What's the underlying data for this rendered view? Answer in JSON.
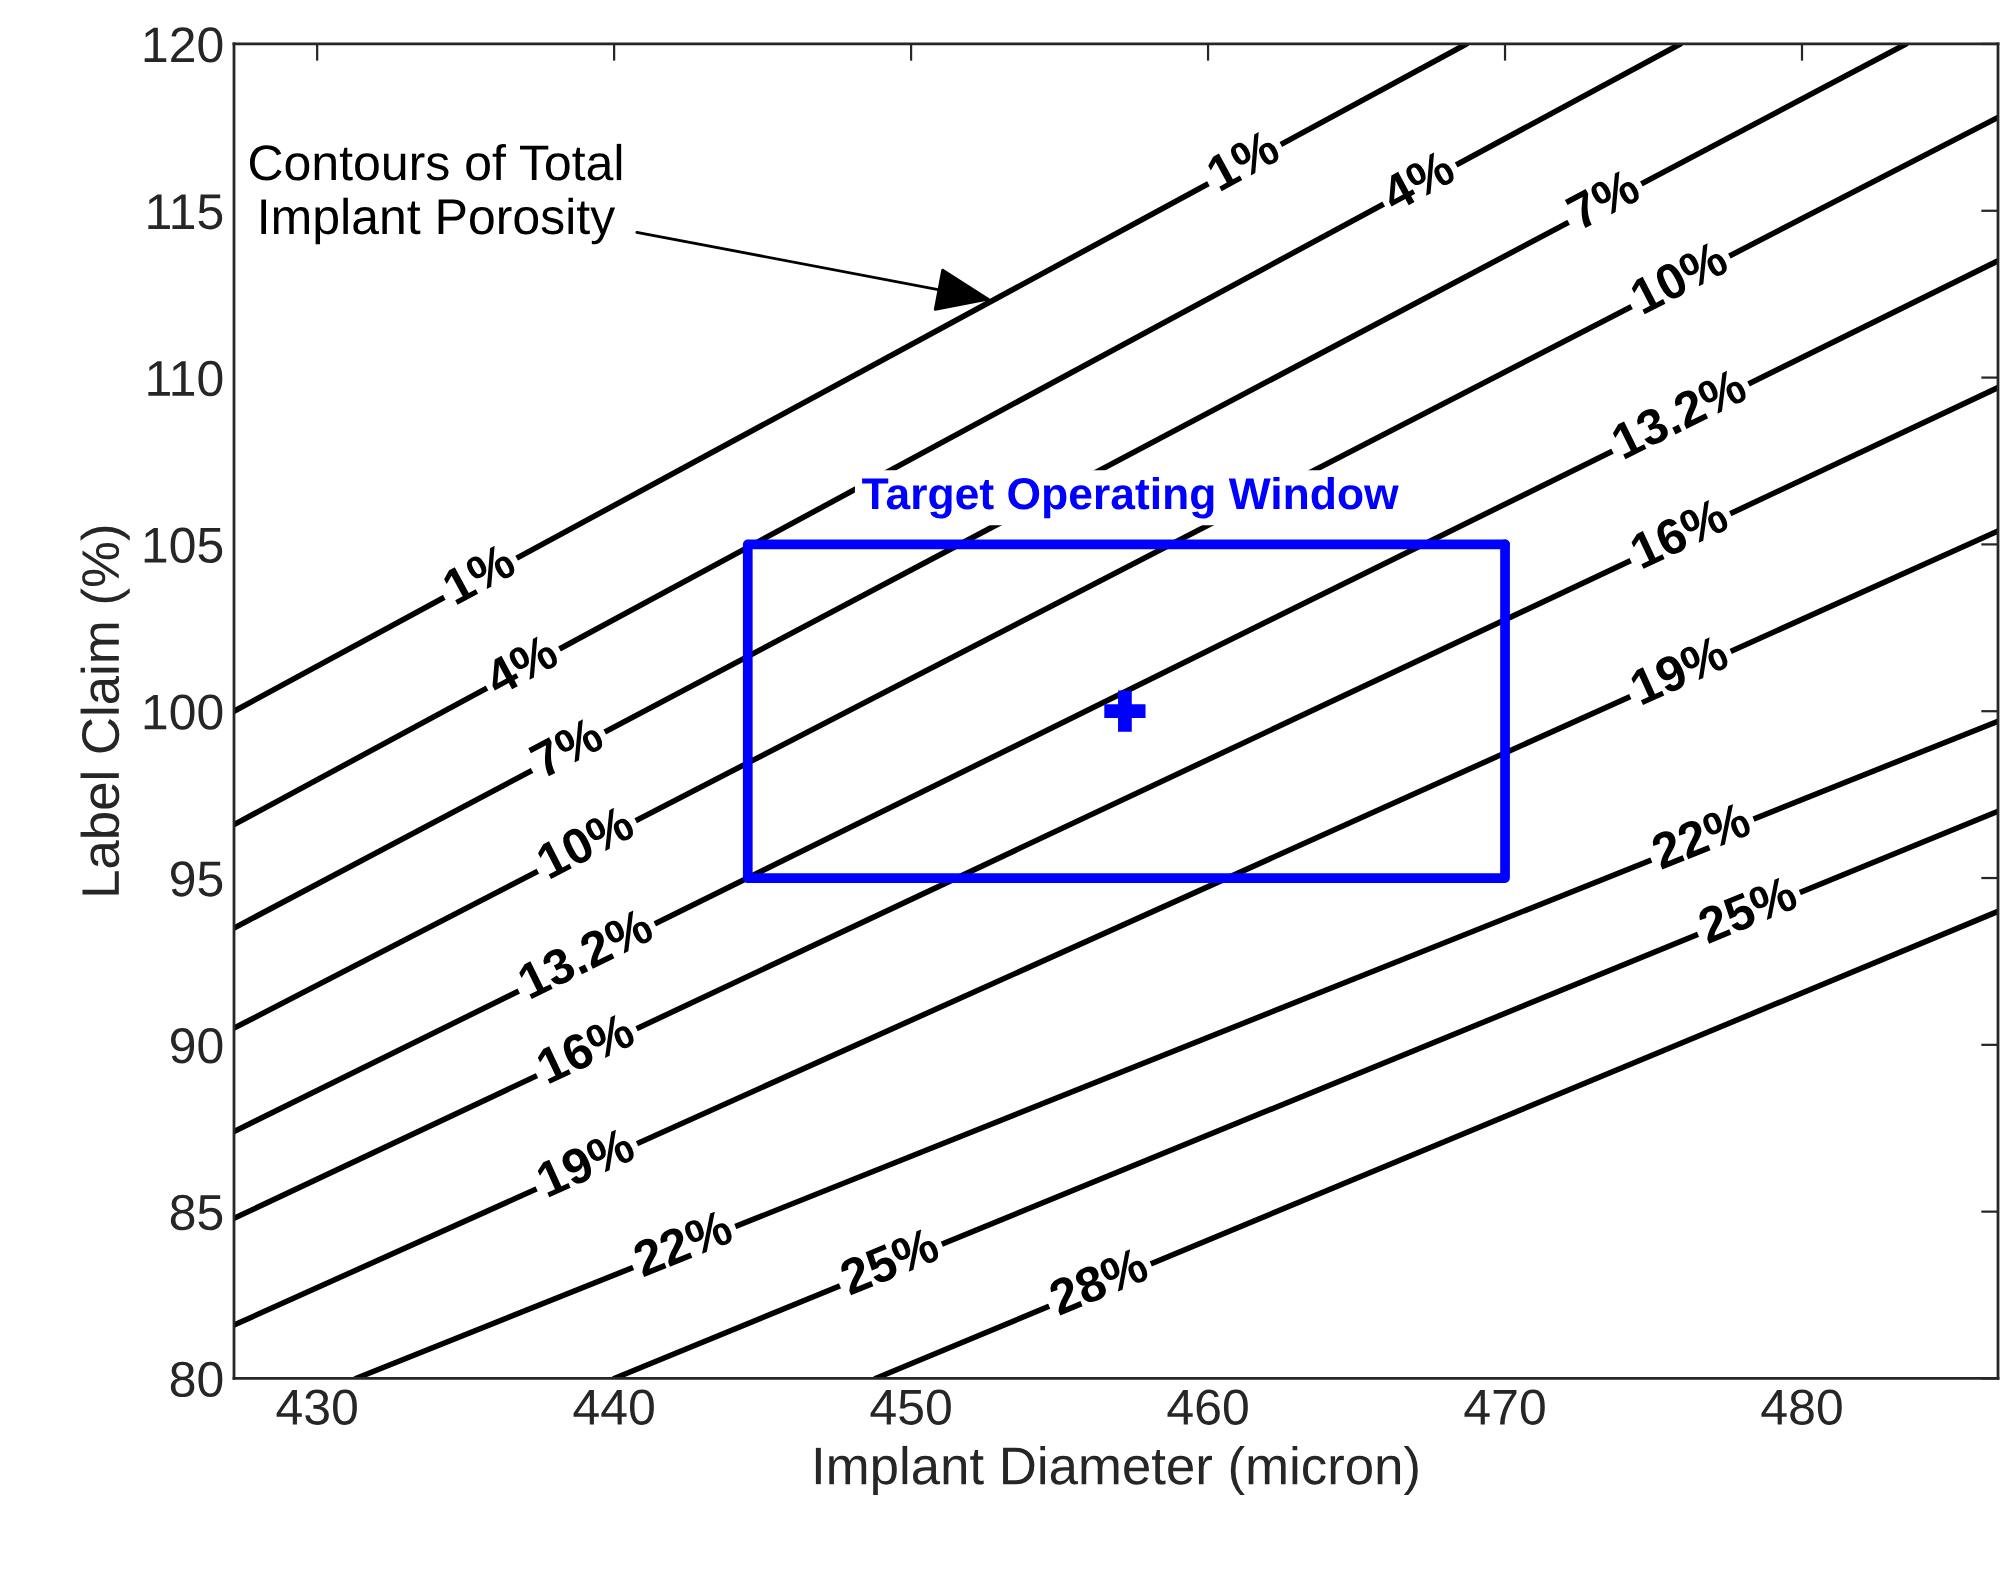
{
  "chart_data": {
    "type": "line",
    "xlabel": "Implant Diameter (micron)",
    "ylabel": "Label Claim (%)",
    "xlim": [
      427.2,
      486.6
    ],
    "ylim": [
      80,
      120
    ],
    "xticks": [
      430,
      440,
      450,
      460,
      470,
      480
    ],
    "yticks": [
      80,
      85,
      90,
      95,
      100,
      105,
      110,
      115,
      120
    ],
    "grid": false,
    "legend": false,
    "series": [
      {
        "name": "1%",
        "color": "#000000",
        "x": [
          427.2,
          468.7
        ],
        "values": [
          100.0,
          120.0
        ]
      },
      {
        "name": "4%",
        "color": "#000000",
        "x": [
          427.2,
          475.9
        ],
        "values": [
          96.6,
          120.0
        ]
      },
      {
        "name": "7%",
        "color": "#000000",
        "x": [
          427.2,
          483.5
        ],
        "values": [
          93.5,
          120.0
        ]
      },
      {
        "name": "10%",
        "color": "#000000",
        "x": [
          427.2,
          486.6
        ],
        "values": [
          90.5,
          117.8
        ]
      },
      {
        "name": "13.2%",
        "color": "#000000",
        "x": [
          427.2,
          486.6
        ],
        "values": [
          87.4,
          113.5
        ]
      },
      {
        "name": "16%",
        "color": "#000000",
        "x": [
          427.2,
          486.6
        ],
        "values": [
          84.8,
          109.7
        ]
      },
      {
        "name": "19%",
        "color": "#000000",
        "x": [
          427.2,
          486.6
        ],
        "values": [
          81.6,
          105.4
        ]
      },
      {
        "name": "22%",
        "color": "#000000",
        "x": [
          431.3,
          486.6
        ],
        "values": [
          80.0,
          99.7
        ]
      },
      {
        "name": "25%",
        "color": "#000000",
        "x": [
          440.0,
          486.6
        ],
        "values": [
          80.0,
          97.0
        ]
      },
      {
        "name": "28%",
        "color": "#000000",
        "x": [
          448.8,
          486.6
        ],
        "values": [
          80.0,
          94.0
        ]
      },
      {
        "color": "#0000ff",
        "x": [
          444.5,
          470,
          470
        ],
        "values": [
          95,
          95,
          105
        ]
      },
      {
        "color": "#0000ff",
        "x": [
          444.5,
          444.5,
          470
        ],
        "values": [
          95,
          105,
          105
        ]
      },
      {
        "type": "scatter",
        "marker": "cross",
        "color": "#0000ff",
        "x": [
          457.2
        ],
        "values": [
          100
        ]
      }
    ],
    "annotations": [
      {
        "text": "Contours of Total\nImplant Porosity",
        "x": 452.9,
        "y": 112.3
      },
      "Target Operating Window"
    ]
  }
}
